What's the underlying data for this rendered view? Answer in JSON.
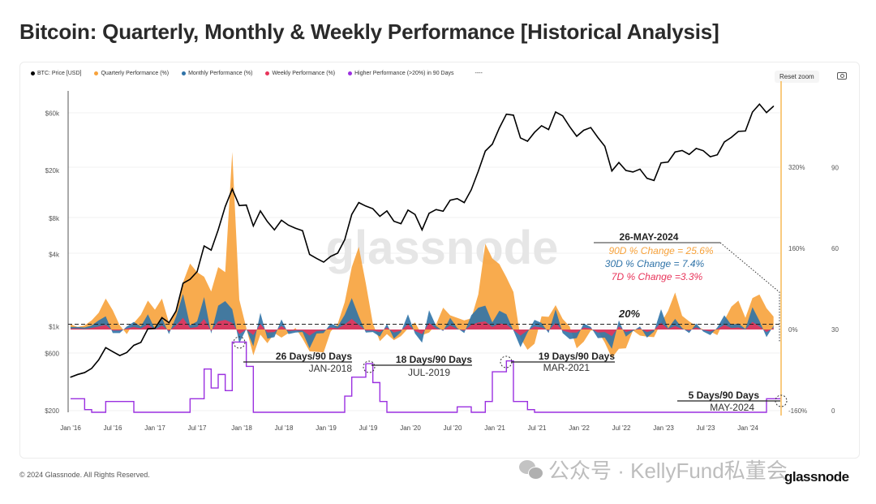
{
  "title": "Bitcoin: Quarterly, Monthly & Weekly Performance [Historical Analysis]",
  "legend": [
    {
      "label": "BTC: Price [USD]",
      "color": "#000000"
    },
    {
      "label": "Quarterly Performance (%)",
      "color": "#f7a23b"
    },
    {
      "label": "Monthly Performance (%)",
      "color": "#2f73a8"
    },
    {
      "label": "Weekly Performance (%)",
      "color": "#e8345a"
    },
    {
      "label": "Higher Performance (>20%) in 90 Days",
      "color": "#9b30e0"
    },
    {
      "label": "----",
      "color": "#999999"
    }
  ],
  "toolbar": {
    "reset_zoom": "Reset zoom",
    "camera_icon": "camera-icon"
  },
  "watermark_center": "glassnode",
  "footer": {
    "copyright": "© 2024 Glassnode. All Rights Reserved.",
    "logo": "glassnode",
    "wechat_watermark": "公众号 · KellyFund私董会"
  },
  "chart_data": {
    "type": "line",
    "x_ticks": [
      "Jan '16",
      "Jul '16",
      "Jan '17",
      "Jul '17",
      "Jan '18",
      "Jul '18",
      "Jan '19",
      "Jul '19",
      "Jan '20",
      "Jul '20",
      "Jan '21",
      "Jul '21",
      "Jan '22",
      "Jul '22",
      "Jan '23",
      "Jul '23",
      "Jan '24"
    ],
    "x_start": "2016-01",
    "x_end": "2024-05",
    "x_resolution": "monthly",
    "price_axis": {
      "scale": "log",
      "ticks": [
        "$60k",
        "$20k",
        "$8k",
        "$4k",
        "$1k",
        "$600",
        "$200"
      ],
      "tick_values": [
        60000,
        20000,
        8000,
        4000,
        1000,
        600,
        200
      ],
      "range": [
        200,
        80000
      ]
    },
    "percent_axis": {
      "ticks": [
        "320%",
        "160%",
        "0%",
        "-160%"
      ],
      "tick_values": [
        320,
        160,
        0,
        -160
      ],
      "range": [
        -160,
        480
      ]
    },
    "days_axis": {
      "ticks": [
        "90",
        "60",
        "30",
        "0"
      ],
      "tick_values": [
        90,
        60,
        30,
        0
      ],
      "range": [
        0,
        120
      ]
    },
    "threshold": {
      "label": "20%",
      "value": 20
    },
    "series": [
      {
        "name": "BTC: Price [USD]",
        "axis": "price",
        "color": "#000000",
        "values": [
          380,
          400,
          415,
          450,
          530,
          670,
          620,
          575,
          610,
          700,
          740,
          960,
          970,
          1190,
          1080,
          1350,
          2300,
          2480,
          2870,
          4700,
          4340,
          6400,
          10000,
          14000,
          10200,
          10300,
          6900,
          9200,
          7500,
          6400,
          7700,
          7000,
          6600,
          6300,
          4000,
          3700,
          3450,
          3850,
          4100,
          5300,
          8600,
          10800,
          10100,
          9600,
          8300,
          9200,
          7550,
          7200,
          9350,
          8600,
          6400,
          8800,
          9450,
          9150,
          11300,
          11650,
          10800,
          13800,
          19700,
          29000,
          33100,
          45200,
          58800,
          57700,
          37300,
          35000,
          41500,
          47100,
          43800,
          61300,
          57000,
          46300,
          38500,
          43200,
          45500,
          37700,
          31800,
          19800,
          23300,
          20000,
          19400,
          20500,
          17200,
          16500,
          23100,
          23500,
          28500,
          29300,
          27200,
          30500,
          29200,
          26000,
          27000,
          34500,
          37700,
          42300,
          42600,
          61200,
          71300,
          60600,
          68500
        ]
      },
      {
        "name": "Quarterly Performance (%)",
        "axis": "percent",
        "color": "#f7a23b",
        "values": [
          10,
          5,
          8,
          18,
          33,
          61,
          38,
          8,
          -9,
          13,
          29,
          57,
          39,
          61,
          13,
          39,
          93,
          130,
          113,
          104,
          75,
          123,
          113,
          350,
          59,
          3,
          -51,
          -10,
          -27,
          -7,
          -16,
          -7,
          3,
          -18,
          -43,
          -44,
          -45,
          -4,
          11,
          54,
          123,
          163,
          91,
          12,
          -23,
          -9,
          -21,
          -13,
          2,
          14,
          -11,
          -6,
          10,
          43,
          28,
          23,
          18,
          22,
          69,
          169,
          140,
          129,
          103,
          74,
          -17,
          -40,
          -28,
          26,
          25,
          48,
          21,
          6,
          -37,
          -24,
          -2,
          -2,
          -26,
          -56,
          -38,
          -37,
          -2,
          -12,
          -14,
          -15,
          13,
          37,
          73,
          27,
          16,
          7,
          0,
          -4,
          -11,
          18,
          45,
          57,
          23,
          62,
          69,
          42,
          25.6
        ]
      },
      {
        "name": "Monthly Performance (%)",
        "axis": "percent",
        "color": "#2f73a8",
        "values": [
          5,
          5,
          4,
          8,
          18,
          26,
          -7,
          -7,
          6,
          15,
          6,
          30,
          1,
          23,
          -9,
          25,
          70,
          8,
          16,
          64,
          -8,
          47,
          56,
          40,
          -27,
          1,
          -33,
          33,
          -18,
          -15,
          20,
          -9,
          -6,
          -5,
          -37,
          -8,
          -7,
          12,
          6,
          29,
          62,
          26,
          -6,
          -5,
          -14,
          11,
          -18,
          -5,
          30,
          -8,
          -26,
          38,
          7,
          -3,
          23,
          3,
          -7,
          28,
          43,
          47,
          14,
          37,
          30,
          -2,
          -35,
          -6,
          19,
          13,
          -7,
          40,
          -7,
          -19,
          -17,
          12,
          5,
          -17,
          -16,
          -38,
          18,
          -14,
          -3,
          6,
          -16,
          -4,
          40,
          2,
          21,
          3,
          -7,
          12,
          -4,
          -11,
          4,
          28,
          9,
          12,
          1,
          44,
          17,
          -15,
          7.4
        ]
      },
      {
        "name": "Weekly Performance (%)",
        "axis": "percent",
        "color": "#e8345a",
        "values": [
          2,
          2,
          1,
          3,
          6,
          9,
          -2,
          -2,
          2,
          5,
          2,
          10,
          0,
          8,
          -3,
          8,
          23,
          3,
          5,
          21,
          -3,
          16,
          19,
          13,
          -9,
          0,
          -11,
          11,
          -6,
          -5,
          7,
          -3,
          -2,
          -2,
          -12,
          -3,
          -2,
          4,
          2,
          10,
          21,
          9,
          -2,
          -2,
          -5,
          4,
          -6,
          -2,
          10,
          -3,
          -9,
          13,
          2,
          -1,
          8,
          1,
          -2,
          9,
          14,
          16,
          5,
          12,
          10,
          -1,
          -12,
          -2,
          6,
          4,
          -2,
          13,
          -2,
          -6,
          -6,
          4,
          2,
          -6,
          -5,
          -13,
          6,
          -5,
          -1,
          2,
          -5,
          -1,
          13,
          1,
          7,
          1,
          -2,
          4,
          -1,
          -4,
          1,
          9,
          3,
          4,
          0,
          15,
          6,
          -5,
          3.3
        ]
      },
      {
        "name": "Higher Performance (>20%) in 90 Days",
        "axis": "days",
        "color": "#9b30e0",
        "values": [
          5,
          5,
          1,
          0,
          0,
          4,
          4,
          4,
          4,
          0,
          0,
          0,
          0,
          0,
          0,
          0,
          0,
          5,
          5,
          16,
          9,
          14,
          8,
          26,
          26,
          17,
          0,
          0,
          0,
          0,
          0,
          0,
          0,
          0,
          0,
          0,
          0,
          0,
          0,
          6,
          13,
          13,
          18,
          11,
          4,
          0,
          0,
          0,
          0,
          0,
          0,
          0,
          0,
          0,
          0,
          2,
          2,
          0,
          0,
          4,
          15,
          15,
          19,
          4,
          4,
          1,
          0,
          0,
          0,
          0,
          0,
          0,
          0,
          0,
          0,
          0,
          0,
          0,
          0,
          0,
          0,
          0,
          0,
          0,
          0,
          0,
          0,
          0,
          0,
          0,
          0,
          0,
          0,
          0,
          0,
          0,
          0,
          0,
          0,
          5,
          5
        ]
      }
    ],
    "annotations": [
      {
        "days": "26 Days/90 Days",
        "date": "JAN-2018"
      },
      {
        "days": "18 Days/90 Days",
        "date": "JUL-2019"
      },
      {
        "days": "19 Days/90 Days",
        "date": "MAR-2021"
      },
      {
        "days": "5 Days/90 Days",
        "date": "MAY-2024"
      }
    ],
    "latest": {
      "date": "26-MAY-2024",
      "q": "90D % Change = 25.6%",
      "m": "30D % Change = 7.4%",
      "w": "7D % Change =3.3%"
    },
    "grid": true
  }
}
